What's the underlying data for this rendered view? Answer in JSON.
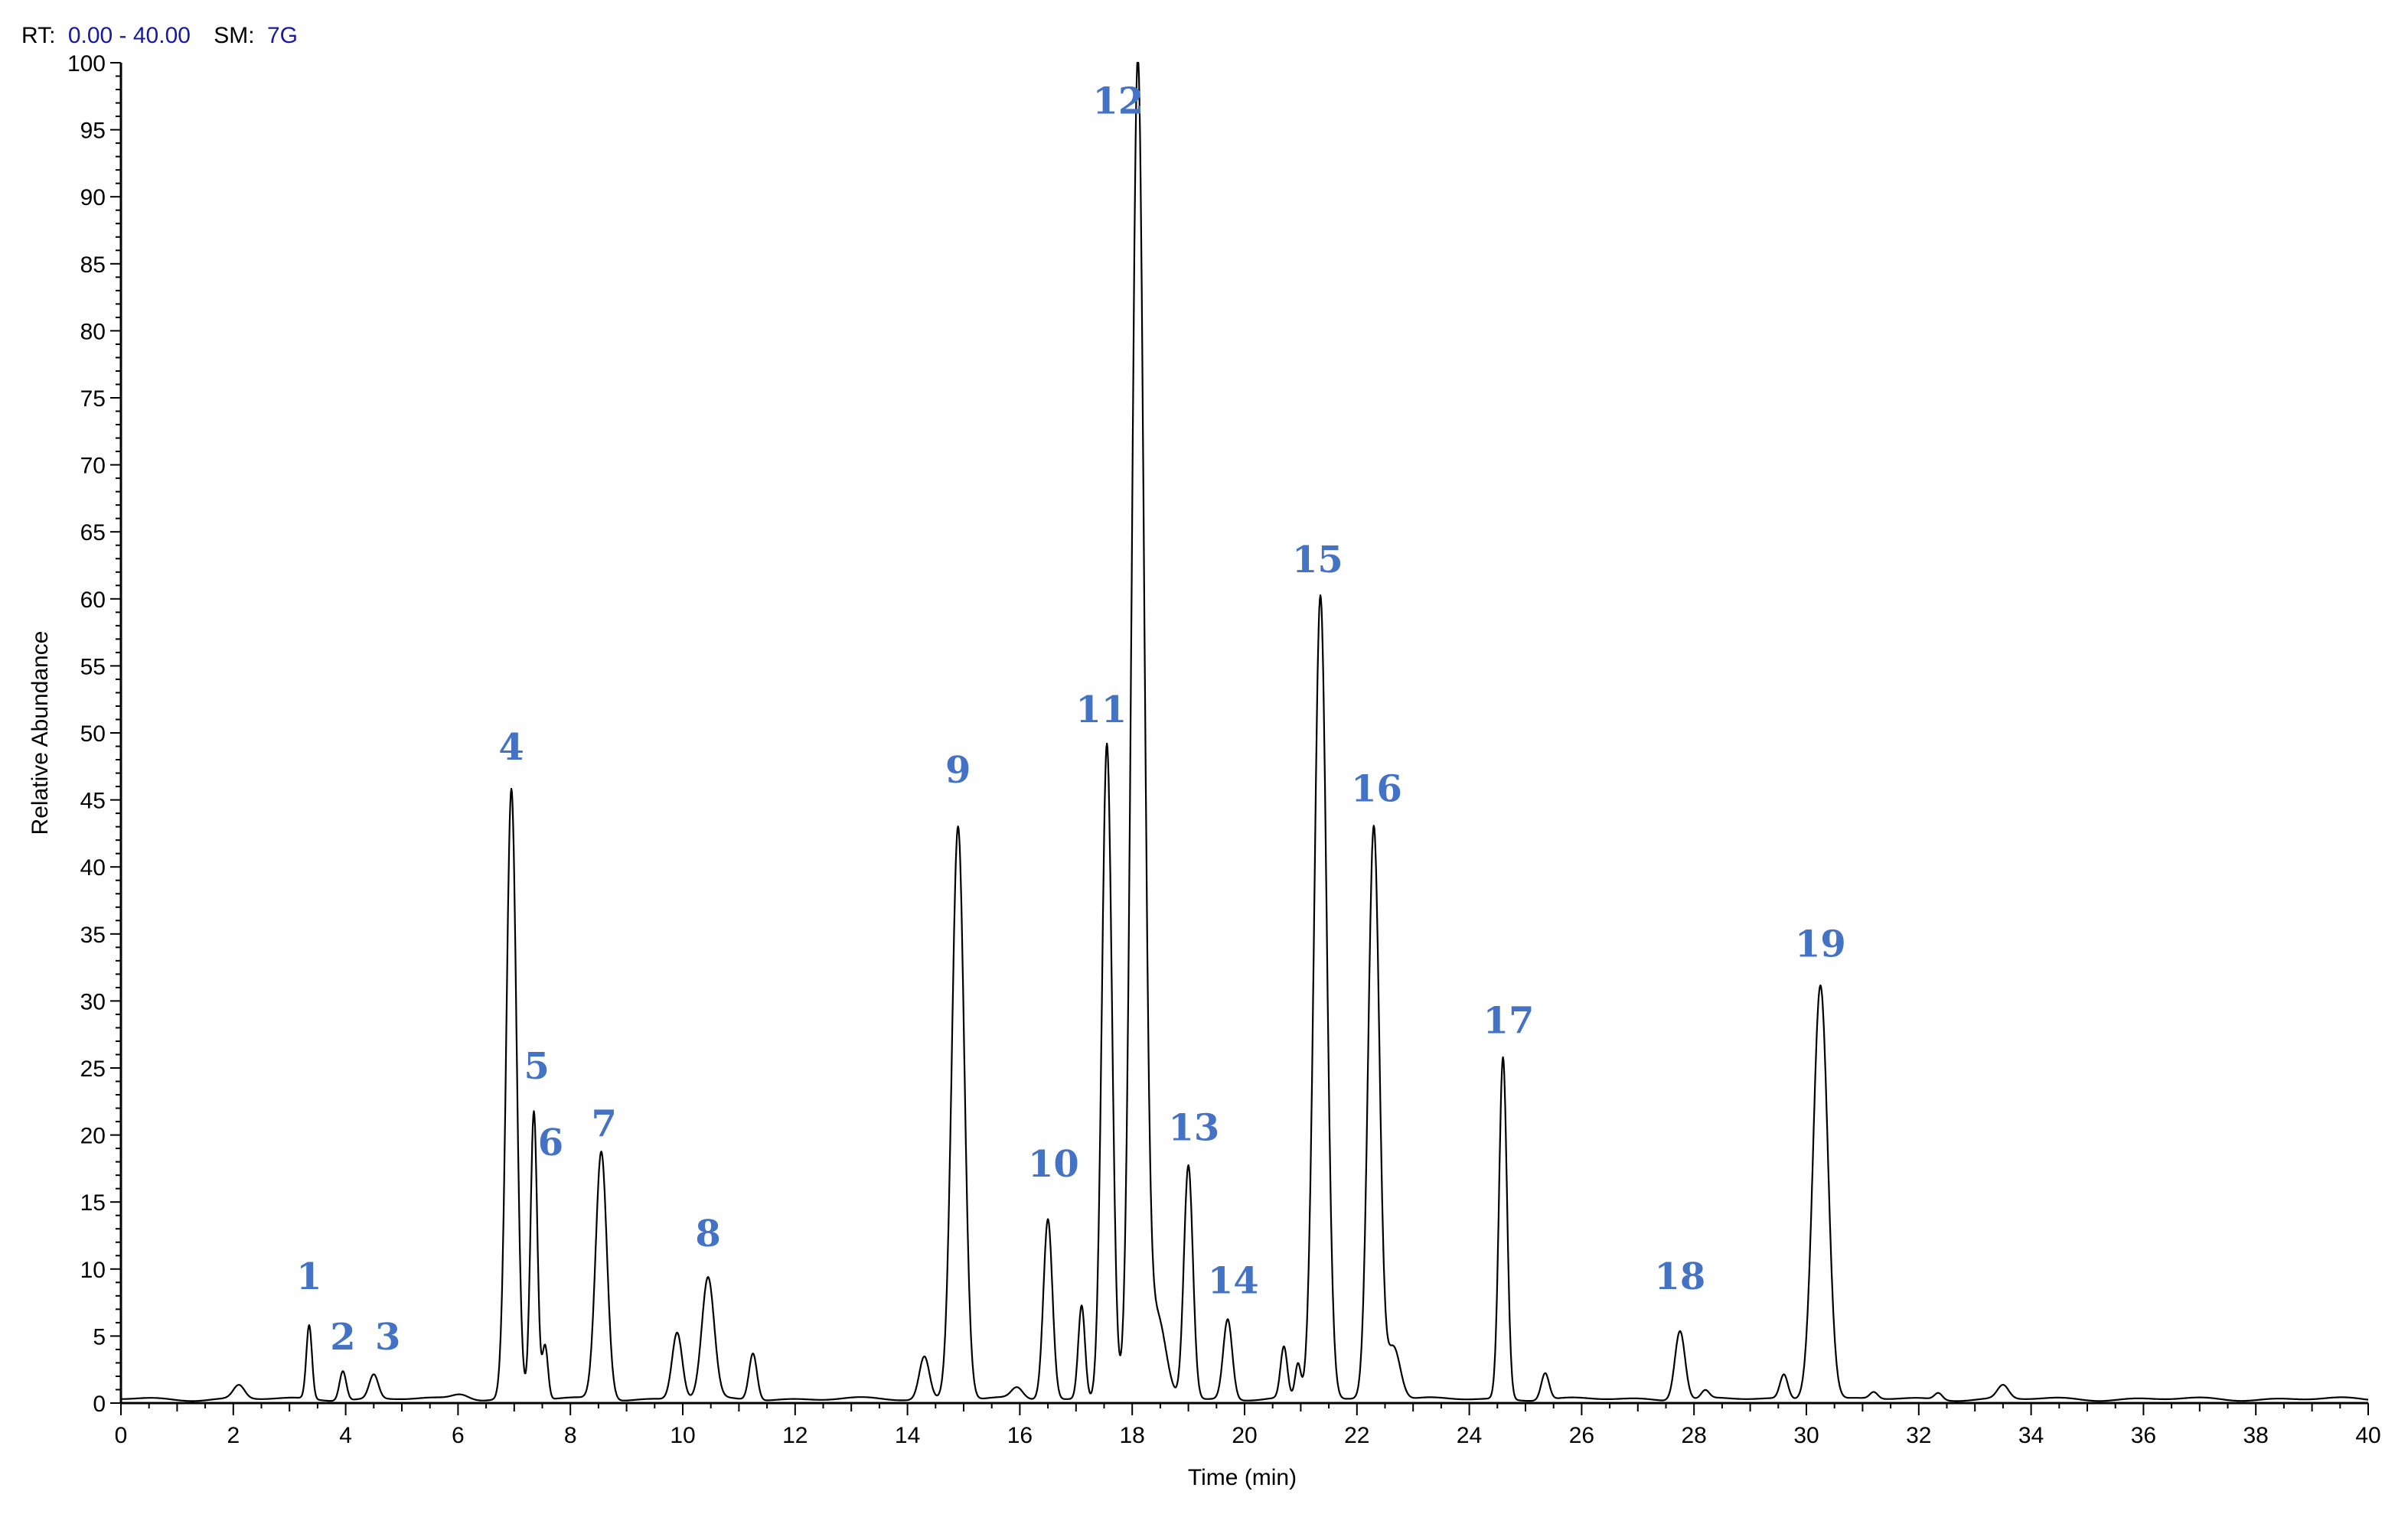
{
  "header": {
    "rt_label": "RT:",
    "rt_range": "0.00 - 40.00",
    "sm_label": "SM:",
    "sm_value": "7G"
  },
  "chart_data": {
    "type": "line",
    "xlabel": "Time (min)",
    "ylabel": "Relative Abundance",
    "xlim": [
      0,
      40
    ],
    "ylim": [
      0,
      100
    ],
    "x_ticks": [
      0,
      2,
      4,
      6,
      8,
      10,
      12,
      14,
      16,
      18,
      20,
      22,
      24,
      26,
      28,
      30,
      32,
      34,
      36,
      38,
      40
    ],
    "y_ticks": [
      0,
      5,
      10,
      15,
      20,
      25,
      30,
      35,
      40,
      45,
      50,
      55,
      60,
      65,
      70,
      75,
      80,
      85,
      90,
      95,
      100
    ],
    "grid": false,
    "line_color": "#000000",
    "label_color": "#4472C4",
    "baseline": 0.3,
    "peaks": [
      {
        "rt": 2.1,
        "height": 1.0,
        "width": 0.1
      },
      {
        "rt": 3.35,
        "height": 5.5,
        "width": 0.05
      },
      {
        "rt": 3.95,
        "height": 2.2,
        "width": 0.06
      },
      {
        "rt": 4.5,
        "height": 1.8,
        "width": 0.08
      },
      {
        "rt": 6.05,
        "height": 0.4,
        "width": 0.15
      },
      {
        "rt": 6.95,
        "height": 45.5,
        "width": 0.09
      },
      {
        "rt": 7.35,
        "height": 21.5,
        "width": 0.06
      },
      {
        "rt": 7.55,
        "height": 4.0,
        "width": 0.05
      },
      {
        "rt": 8.55,
        "height": 18.5,
        "width": 0.1
      },
      {
        "rt": 9.9,
        "height": 5.0,
        "width": 0.09
      },
      {
        "rt": 10.45,
        "height": 9.0,
        "width": 0.11
      },
      {
        "rt": 11.25,
        "height": 3.5,
        "width": 0.07
      },
      {
        "rt": 14.3,
        "height": 3.2,
        "width": 0.09
      },
      {
        "rt": 14.9,
        "height": 42.8,
        "width": 0.11
      },
      {
        "rt": 15.95,
        "height": 0.8,
        "width": 0.1
      },
      {
        "rt": 16.5,
        "height": 13.5,
        "width": 0.08
      },
      {
        "rt": 17.1,
        "height": 7.0,
        "width": 0.06
      },
      {
        "rt": 17.55,
        "height": 49.0,
        "width": 0.09
      },
      {
        "rt": 18.1,
        "height": 99.7,
        "width": 0.11
      },
      {
        "rt": 18.45,
        "height": 6.0,
        "width": 0.15
      },
      {
        "rt": 19.0,
        "height": 17.5,
        "width": 0.08
      },
      {
        "rt": 19.7,
        "height": 6.0,
        "width": 0.08
      },
      {
        "rt": 20.7,
        "height": 3.8,
        "width": 0.06
      },
      {
        "rt": 20.95,
        "height": 2.5,
        "width": 0.05
      },
      {
        "rt": 21.35,
        "height": 60.0,
        "width": 0.11
      },
      {
        "rt": 22.3,
        "height": 42.8,
        "width": 0.1
      },
      {
        "rt": 22.65,
        "height": 4.0,
        "width": 0.12
      },
      {
        "rt": 24.6,
        "height": 25.5,
        "width": 0.07
      },
      {
        "rt": 25.35,
        "height": 2.0,
        "width": 0.07
      },
      {
        "rt": 27.75,
        "height": 5.2,
        "width": 0.09
      },
      {
        "rt": 28.2,
        "height": 0.6,
        "width": 0.07
      },
      {
        "rt": 29.6,
        "height": 1.8,
        "width": 0.07
      },
      {
        "rt": 30.25,
        "height": 31.0,
        "width": 0.13
      },
      {
        "rt": 31.2,
        "height": 0.5,
        "width": 0.07
      },
      {
        "rt": 32.35,
        "height": 0.5,
        "width": 0.07
      },
      {
        "rt": 33.5,
        "height": 1.0,
        "width": 0.1
      }
    ],
    "annotations": [
      {
        "text": "1",
        "x": 3.35,
        "y": 8.5
      },
      {
        "text": "2",
        "x": 3.95,
        "y": 4.0
      },
      {
        "text": "3",
        "x": 4.75,
        "y": 4.0
      },
      {
        "text": "4",
        "x": 6.95,
        "y": 48.0
      },
      {
        "text": "5",
        "x": 7.4,
        "y": 24.2
      },
      {
        "text": "6",
        "x": 7.65,
        "y": 18.5
      },
      {
        "text": "7",
        "x": 8.6,
        "y": 19.9
      },
      {
        "text": "8",
        "x": 10.45,
        "y": 11.7
      },
      {
        "text": "9",
        "x": 14.9,
        "y": 46.3
      },
      {
        "text": "10",
        "x": 16.6,
        "y": 16.9
      },
      {
        "text": "11",
        "x": 17.45,
        "y": 50.8
      },
      {
        "text": "12",
        "x": 17.75,
        "y": 96.2
      },
      {
        "text": "13",
        "x": 19.1,
        "y": 19.6
      },
      {
        "text": "14",
        "x": 19.8,
        "y": 8.2
      },
      {
        "text": "15",
        "x": 21.3,
        "y": 62.0
      },
      {
        "text": "16",
        "x": 22.35,
        "y": 44.9
      },
      {
        "text": "17",
        "x": 24.7,
        "y": 27.6
      },
      {
        "text": "18",
        "x": 27.75,
        "y": 8.5
      },
      {
        "text": "19",
        "x": 30.25,
        "y": 33.3
      }
    ]
  }
}
